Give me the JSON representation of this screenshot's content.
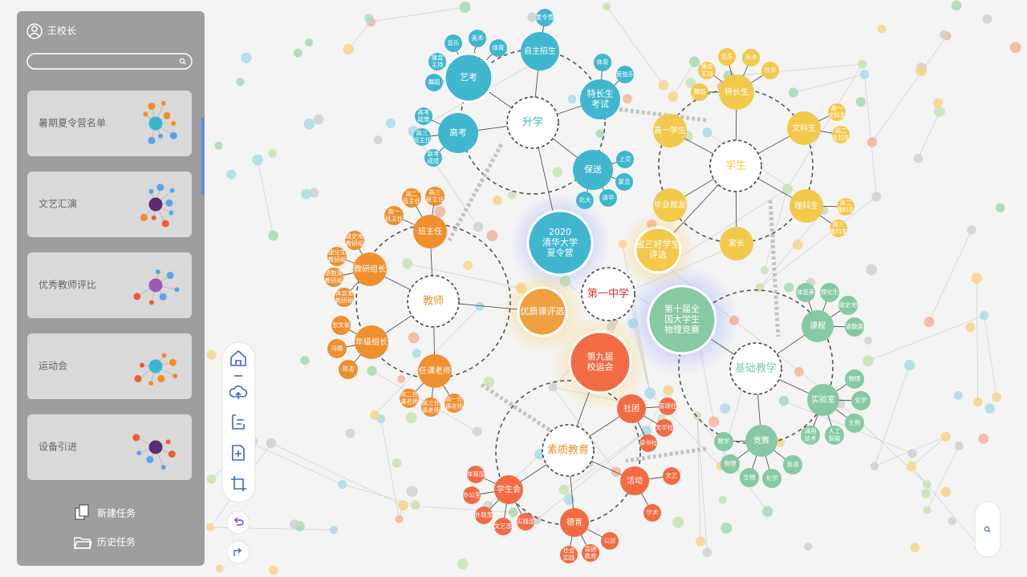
{
  "sidebar": {
    "user": "王校长",
    "tasks": [
      "暑期夏令营名单",
      "文艺汇演",
      "优秀教师评比",
      "运动会",
      "设备引进"
    ],
    "actions": [
      "新建任务",
      "历史任务"
    ]
  },
  "graph": {
    "nodes": [
      [
        "第一中学"
      ],
      [
        "升学"
      ],
      [
        "学生"
      ],
      [
        "教师"
      ],
      [
        "基础教学"
      ],
      [
        "素质教育"
      ],
      [
        "2020",
        "清华大学",
        "夏令营"
      ],
      [
        "第十届全",
        "国大学生",
        "物理竞赛"
      ],
      [
        "第九届",
        "校运会"
      ],
      [
        "优质课评选"
      ],
      [
        "省三好学生",
        "评选"
      ],
      [
        "艺考"
      ],
      [
        "自主招生"
      ],
      [
        "特长生",
        "考试"
      ],
      [
        "高考"
      ],
      [
        "保送"
      ],
      [
        "音乐"
      ],
      [
        "美术"
      ],
      [
        "体育"
      ],
      [
        "播音",
        "主持"
      ],
      [
        "舞蹈"
      ],
      [
        "夏令营"
      ],
      [
        "体育"
      ],
      [
        "管弦乐"
      ],
      [
        "高考",
        "政策"
      ],
      [
        "高三",
        "班主任"
      ],
      [
        "联考",
        "成绩"
      ],
      [
        "上交"
      ],
      [
        "复旦"
      ],
      [
        "清华"
      ],
      [
        "北大"
      ],
      [
        "特长生"
      ],
      [
        "高一学生"
      ],
      [
        "文科生"
      ],
      [
        "理科生"
      ],
      [
        "毕业校友"
      ],
      [
        "家长"
      ],
      [
        "音乐"
      ],
      [
        "美术"
      ],
      [
        "播音",
        "主持"
      ],
      [
        "舞蹈"
      ],
      [
        "体育"
      ],
      [
        "高一",
        "文科生"
      ],
      [
        "高二",
        "文科生"
      ],
      [
        "高二",
        "理科生"
      ],
      [
        "高三",
        "理科生"
      ],
      [
        "班主任"
      ],
      [
        "教研组长"
      ],
      [
        "年级组长"
      ],
      [
        "任课老师"
      ],
      [
        "高二",
        "班主任"
      ],
      [
        "高三",
        "班主任"
      ],
      [
        "高一",
        "班主任"
      ],
      [
        "政史地",
        "教研组"
      ],
      [
        "理化生",
        "教研组"
      ],
      [
        "语数英",
        "教研组"
      ],
      [
        "体音美",
        "教研组"
      ],
      [
        "张文彬"
      ],
      [
        "冯磊"
      ],
      [
        "蒋涛"
      ],
      [
        "高二任",
        "课老师"
      ],
      [
        "高三任",
        "课老师"
      ],
      [
        "高一任",
        "课老师"
      ],
      [
        "社团"
      ],
      [
        "活动"
      ],
      [
        "学生会"
      ],
      [
        "德育"
      ],
      [
        "篮球社"
      ],
      [
        "文学社"
      ],
      [
        "读书社"
      ],
      [
        "文艺"
      ],
      [
        "学术"
      ],
      [
        "体育部"
      ],
      [
        "办公室"
      ],
      [
        "外联部"
      ],
      [
        "文艺部"
      ],
      [
        "实践部"
      ],
      [
        "公益"
      ],
      [
        "社会",
        "实践"
      ],
      [
        "品德",
        "教育"
      ],
      [
        "课程"
      ],
      [
        "实验室"
      ],
      [
        "竞赛"
      ],
      [
        "体音美"
      ],
      [
        "理化生"
      ],
      [
        "政史地"
      ],
      [
        "语数英"
      ],
      [
        "物理"
      ],
      [
        "化学"
      ],
      [
        "生物"
      ],
      [
        "通用",
        "技术"
      ],
      [
        "人工",
        "智能"
      ],
      [
        "数学"
      ],
      [
        "物理"
      ],
      [
        "生物"
      ],
      [
        "化学"
      ],
      [
        "英语"
      ]
    ]
  }
}
